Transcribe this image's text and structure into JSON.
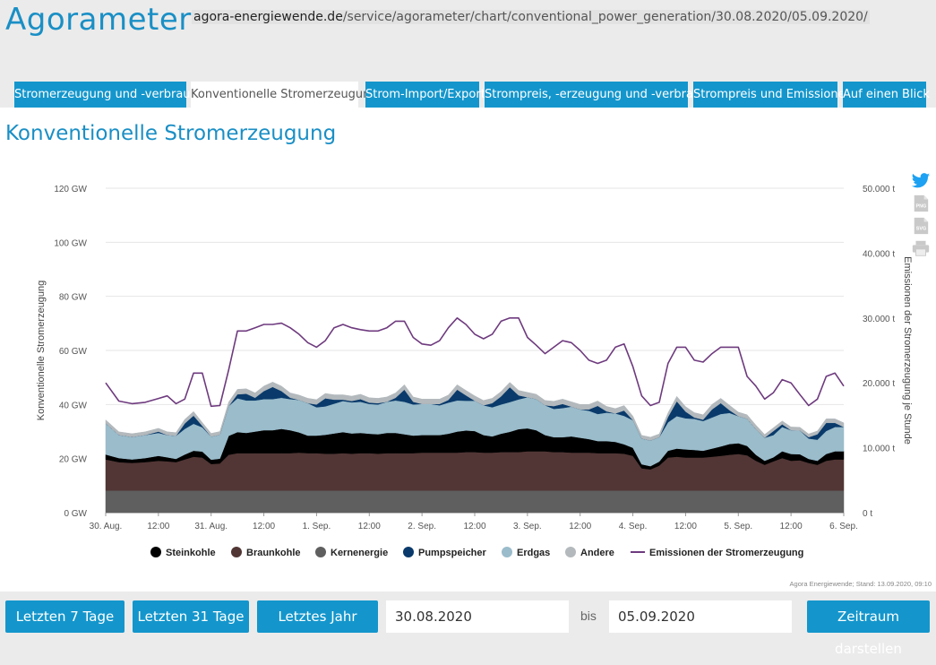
{
  "header": {
    "logo": "Agorameter",
    "url_host": "agora-energiewende.de",
    "url_path": "/service/agorameter/chart/conventional_power_generation/30.08.2020/05.09.2020/"
  },
  "tabs": [
    {
      "label": "Stromerzeugung und -verbrauch",
      "active": false
    },
    {
      "label": "Konventionelle Stromerzeugung",
      "active": true
    },
    {
      "label": "Strom-Import/Export",
      "active": false
    },
    {
      "label": "Strompreis, -erzeugung und -verbrauch",
      "active": false
    },
    {
      "label": "Strompreis und Emissionen",
      "active": false
    },
    {
      "label": "Auf einen Blick",
      "active": false
    }
  ],
  "page_title": "Konventionelle Stromerzeugung",
  "side_icons": [
    "twitter-icon",
    "png-download-icon",
    "svg-download-icon",
    "print-icon"
  ],
  "chart_data": {
    "type": "area",
    "stacked": true,
    "ylabel": "Konventionelle Stromerzeugung",
    "y2label": "Emissionen der Stromerzeugung je Stunde",
    "ylim": [
      0,
      120
    ],
    "y2lim": [
      0,
      50000
    ],
    "yticks": [
      "0 GW",
      "20 GW",
      "40 GW",
      "60 GW",
      "80 GW",
      "100 GW",
      "120 GW"
    ],
    "y2ticks": [
      "0 t",
      "10.000 t",
      "20.000 t",
      "30.000 t",
      "40.000 t",
      "50.000 t"
    ],
    "xlim": [
      0,
      168
    ],
    "xticks": [
      {
        "x": 0,
        "label": "30. Aug."
      },
      {
        "x": 12,
        "label": "12:00"
      },
      {
        "x": 24,
        "label": "31. Aug."
      },
      {
        "x": 36,
        "label": "12:00"
      },
      {
        "x": 48,
        "label": "1. Sep."
      },
      {
        "x": 60,
        "label": "12:00"
      },
      {
        "x": 72,
        "label": "2. Sep."
      },
      {
        "x": 84,
        "label": "12:00"
      },
      {
        "x": 96,
        "label": "3. Sep."
      },
      {
        "x": 108,
        "label": "12:00"
      },
      {
        "x": 120,
        "label": "4. Sep."
      },
      {
        "x": 132,
        "label": "12:00"
      },
      {
        "x": 144,
        "label": "5. Sep."
      },
      {
        "x": 156,
        "label": "12:00"
      },
      {
        "x": 168,
        "label": "6. Sep."
      }
    ],
    "x": [
      0,
      3,
      6,
      9,
      12,
      14,
      16,
      18,
      20,
      22,
      24,
      26,
      28,
      30,
      32,
      34,
      36,
      38,
      40,
      42,
      44,
      46,
      48,
      50,
      52,
      54,
      56,
      58,
      60,
      62,
      64,
      66,
      68,
      70,
      72,
      74,
      76,
      78,
      80,
      82,
      84,
      86,
      88,
      90,
      92,
      94,
      96,
      98,
      100,
      102,
      104,
      106,
      108,
      110,
      112,
      114,
      116,
      118,
      120,
      122,
      124,
      126,
      128,
      130,
      132,
      134,
      136,
      138,
      140,
      142,
      144,
      146,
      148,
      150,
      152,
      154,
      156,
      158,
      160,
      162,
      164,
      166,
      168
    ],
    "series": [
      {
        "name": "Kernenergie",
        "axis": "left",
        "color": "#5f5f5f",
        "values": [
          8.2,
          8.2,
          8.2,
          8.2,
          8.2,
          8.2,
          8.2,
          8.2,
          8.2,
          8.2,
          8.2,
          8.2,
          8.2,
          8.2,
          8.2,
          8.2,
          8.2,
          8.2,
          8.2,
          8.2,
          8.2,
          8.2,
          8.2,
          8.2,
          8.2,
          8.2,
          8.2,
          8.2,
          8.2,
          8.2,
          8.2,
          8.2,
          8.2,
          8.2,
          8.2,
          8.2,
          8.2,
          8.2,
          8.2,
          8.2,
          8.2,
          8.2,
          8.2,
          8.2,
          8.2,
          8.2,
          8.2,
          8.2,
          8.2,
          8.2,
          8.2,
          8.2,
          8.2,
          8.2,
          8.2,
          8.2,
          8.2,
          8.2,
          8.2,
          8.2,
          8.2,
          8.2,
          8.2,
          8.2,
          8.2,
          8.2,
          8.2,
          8.2,
          8.2,
          8.2,
          8.2,
          8.2,
          8.2,
          8.2,
          8.2,
          8.2,
          8.2,
          8.2,
          8.2,
          8.2,
          8.2,
          8.2,
          8.2
        ]
      },
      {
        "name": "Braunkohle",
        "axis": "left",
        "color": "#513635",
        "values": [
          11.5,
          10.5,
          10.2,
          10.5,
          11,
          10.8,
          10.5,
          11.5,
          12.5,
          12.2,
          9.8,
          10.0,
          13.2,
          13.8,
          13.8,
          13.8,
          13.8,
          13.8,
          13.8,
          13.8,
          14,
          13.8,
          13.8,
          13.6,
          13.6,
          13.8,
          13.6,
          13.8,
          13.8,
          13.6,
          13.8,
          13.8,
          13.8,
          13.8,
          14,
          14,
          14,
          14,
          14,
          14.2,
          14.2,
          14,
          14,
          14.2,
          14.2,
          14.2,
          14.5,
          14.5,
          14.5,
          14.2,
          14.2,
          14,
          14,
          14,
          13.8,
          13.8,
          13.8,
          13.6,
          12.8,
          8.2,
          7.8,
          9.2,
          12.2,
          12.5,
          12.2,
          12.2,
          12.2,
          12.5,
          12.8,
          13.2,
          13.5,
          13,
          11,
          9.5,
          10.8,
          12,
          11,
          11.2,
          10.2,
          9.5,
          11,
          11.5,
          11.5
        ]
      },
      {
        "name": "Steinkohle",
        "axis": "left",
        "color": "#000000",
        "values": [
          1.8,
          1.5,
          1.3,
          1.5,
          1.8,
          1.5,
          1.2,
          1.8,
          2.2,
          2.2,
          1.6,
          1.8,
          7,
          7.8,
          7.5,
          8,
          8.5,
          8.5,
          9,
          8.5,
          7.5,
          6.5,
          6.5,
          7,
          7.5,
          7.8,
          7.5,
          7.5,
          7.2,
          7.2,
          7.5,
          7.5,
          7,
          6.5,
          6.5,
          6.5,
          6.5,
          7,
          7.8,
          8,
          7.8,
          6.5,
          6,
          6.8,
          7.5,
          8.5,
          8.5,
          7.8,
          6,
          5.5,
          5.5,
          6,
          5.5,
          5,
          4.5,
          4.5,
          4.2,
          3.5,
          3,
          1.5,
          1.2,
          1.5,
          2.5,
          3,
          3,
          2.8,
          2.5,
          3,
          3.5,
          4,
          4,
          3.5,
          2.2,
          1.5,
          1.5,
          2.5,
          2.5,
          2.2,
          1.5,
          1.5,
          2.5,
          3,
          3
        ]
      },
      {
        "name": "Erdgas",
        "axis": "left",
        "color": "#9abccb",
        "values": [
          11.5,
          8.5,
          8.3,
          8.5,
          8.5,
          8.2,
          8.5,
          9.5,
          10,
          9,
          8.5,
          8.8,
          11,
          12.5,
          12,
          11.5,
          11.5,
          11.5,
          11.5,
          11.5,
          12,
          12,
          10.5,
          10.5,
          11,
          11.5,
          11.5,
          11.5,
          11,
          11,
          11.5,
          12,
          12,
          11.5,
          11.5,
          11.5,
          11,
          11.5,
          11.5,
          11,
          11.2,
          11,
          10.8,
          10.8,
          11,
          11,
          11.5,
          11.5,
          11,
          10.5,
          10.8,
          11,
          10.5,
          10.5,
          10,
          10.5,
          10.5,
          10.5,
          10.2,
          9.5,
          9.5,
          9,
          10.5,
          12,
          11.5,
          11.5,
          11,
          11.5,
          12,
          11.5,
          10,
          10,
          9.5,
          8.5,
          8.2,
          9,
          8.8,
          8.8,
          7.5,
          7.8,
          8.5,
          9,
          9
        ]
      },
      {
        "name": "Pumpspeicher",
        "axis": "left",
        "color": "#093a6b",
        "values": [
          0,
          0,
          0,
          0,
          0.5,
          0,
          0,
          2,
          3,
          0.5,
          0,
          0,
          0,
          1.5,
          2.5,
          1,
          3,
          4.5,
          2.5,
          0.5,
          0,
          0,
          1,
          3,
          1.5,
          0.5,
          0.5,
          1,
          0.5,
          0.5,
          0,
          1,
          4.5,
          1,
          0,
          0,
          0.5,
          1,
          4,
          2,
          0,
          0,
          1.5,
          3,
          5.5,
          1.5,
          0,
          0,
          0,
          1,
          1.5,
          0,
          0,
          0.5,
          3,
          0.5,
          0,
          2,
          0,
          0,
          0,
          0,
          2,
          5.5,
          2.5,
          0.5,
          0.5,
          3,
          4,
          1,
          0,
          0,
          0,
          0,
          1.5,
          1,
          0,
          0,
          0.5,
          2,
          3,
          1.5,
          0
        ]
      },
      {
        "name": "Andere",
        "axis": "left",
        "color": "#b3b9bc",
        "values": [
          1.3,
          1.2,
          1.2,
          1.2,
          1.2,
          1.2,
          1.2,
          1.5,
          1.5,
          1.2,
          1.2,
          1.2,
          1.5,
          1.8,
          1.8,
          1.8,
          1.8,
          1.8,
          1.8,
          1.8,
          1.8,
          1.8,
          1.8,
          1.8,
          1.8,
          1.8,
          1.8,
          1.8,
          1.8,
          1.8,
          1.8,
          1.8,
          1.8,
          1.8,
          1.8,
          1.8,
          1.8,
          1.8,
          1.8,
          1.8,
          1.8,
          1.8,
          1.8,
          1.8,
          1.8,
          1.8,
          1.8,
          1.8,
          1.8,
          1.8,
          1.8,
          1.8,
          1.8,
          1.8,
          1.8,
          1.8,
          1.8,
          1.8,
          1.5,
          1.2,
          1.2,
          1.2,
          1.5,
          1.8,
          1.8,
          1.8,
          1.8,
          1.8,
          1.8,
          1.8,
          1.5,
          1.5,
          1.5,
          1.2,
          1.2,
          1.2,
          1.2,
          1.2,
          1.2,
          1.2,
          1.5,
          1.5,
          1.5
        ]
      },
      {
        "name": "Emissionen der Stromerzeugung",
        "axis": "right",
        "type": "line",
        "color": "#6e3a7e",
        "values": [
          20000,
          17200,
          16800,
          17000,
          17600,
          18000,
          16800,
          17500,
          21500,
          21500,
          16400,
          16500,
          22000,
          28000,
          28000,
          28500,
          29000,
          29000,
          29200,
          28500,
          27500,
          26200,
          25500,
          26500,
          28500,
          29000,
          28500,
          28200,
          28000,
          28000,
          28500,
          29500,
          29500,
          27000,
          26000,
          25800,
          26500,
          28500,
          30000,
          29000,
          27500,
          26800,
          27500,
          29500,
          30000,
          30000,
          27000,
          25800,
          24500,
          25500,
          26500,
          26200,
          25000,
          23500,
          23000,
          23500,
          25500,
          26000,
          22500,
          18000,
          16500,
          17000,
          23000,
          25500,
          25500,
          23500,
          23200,
          24500,
          25500,
          25500,
          25500,
          21000,
          19500,
          17500,
          18500,
          20500,
          20000,
          18200,
          16500,
          17500,
          21000,
          21500,
          19500
        ]
      }
    ],
    "legend": [
      "Steinkohle",
      "Braunkohle",
      "Kernenergie",
      "Pumpspeicher",
      "Erdgas",
      "Andere",
      "Emissionen der Stromerzeugung"
    ],
    "legend_placement": "bottom",
    "grid": true,
    "credit": "Agora Energiewende; Stand: 13.09.2020, 09:10"
  },
  "footer": {
    "btn_7": "Letzten 7 Tage",
    "btn_31": "Letzten 31 Tage",
    "btn_year": "Letztes Jahr",
    "from_date": "30.08.2020",
    "bis": "bis",
    "to_date": "05.09.2020",
    "show_btn": "Zeitraum darstellen"
  }
}
